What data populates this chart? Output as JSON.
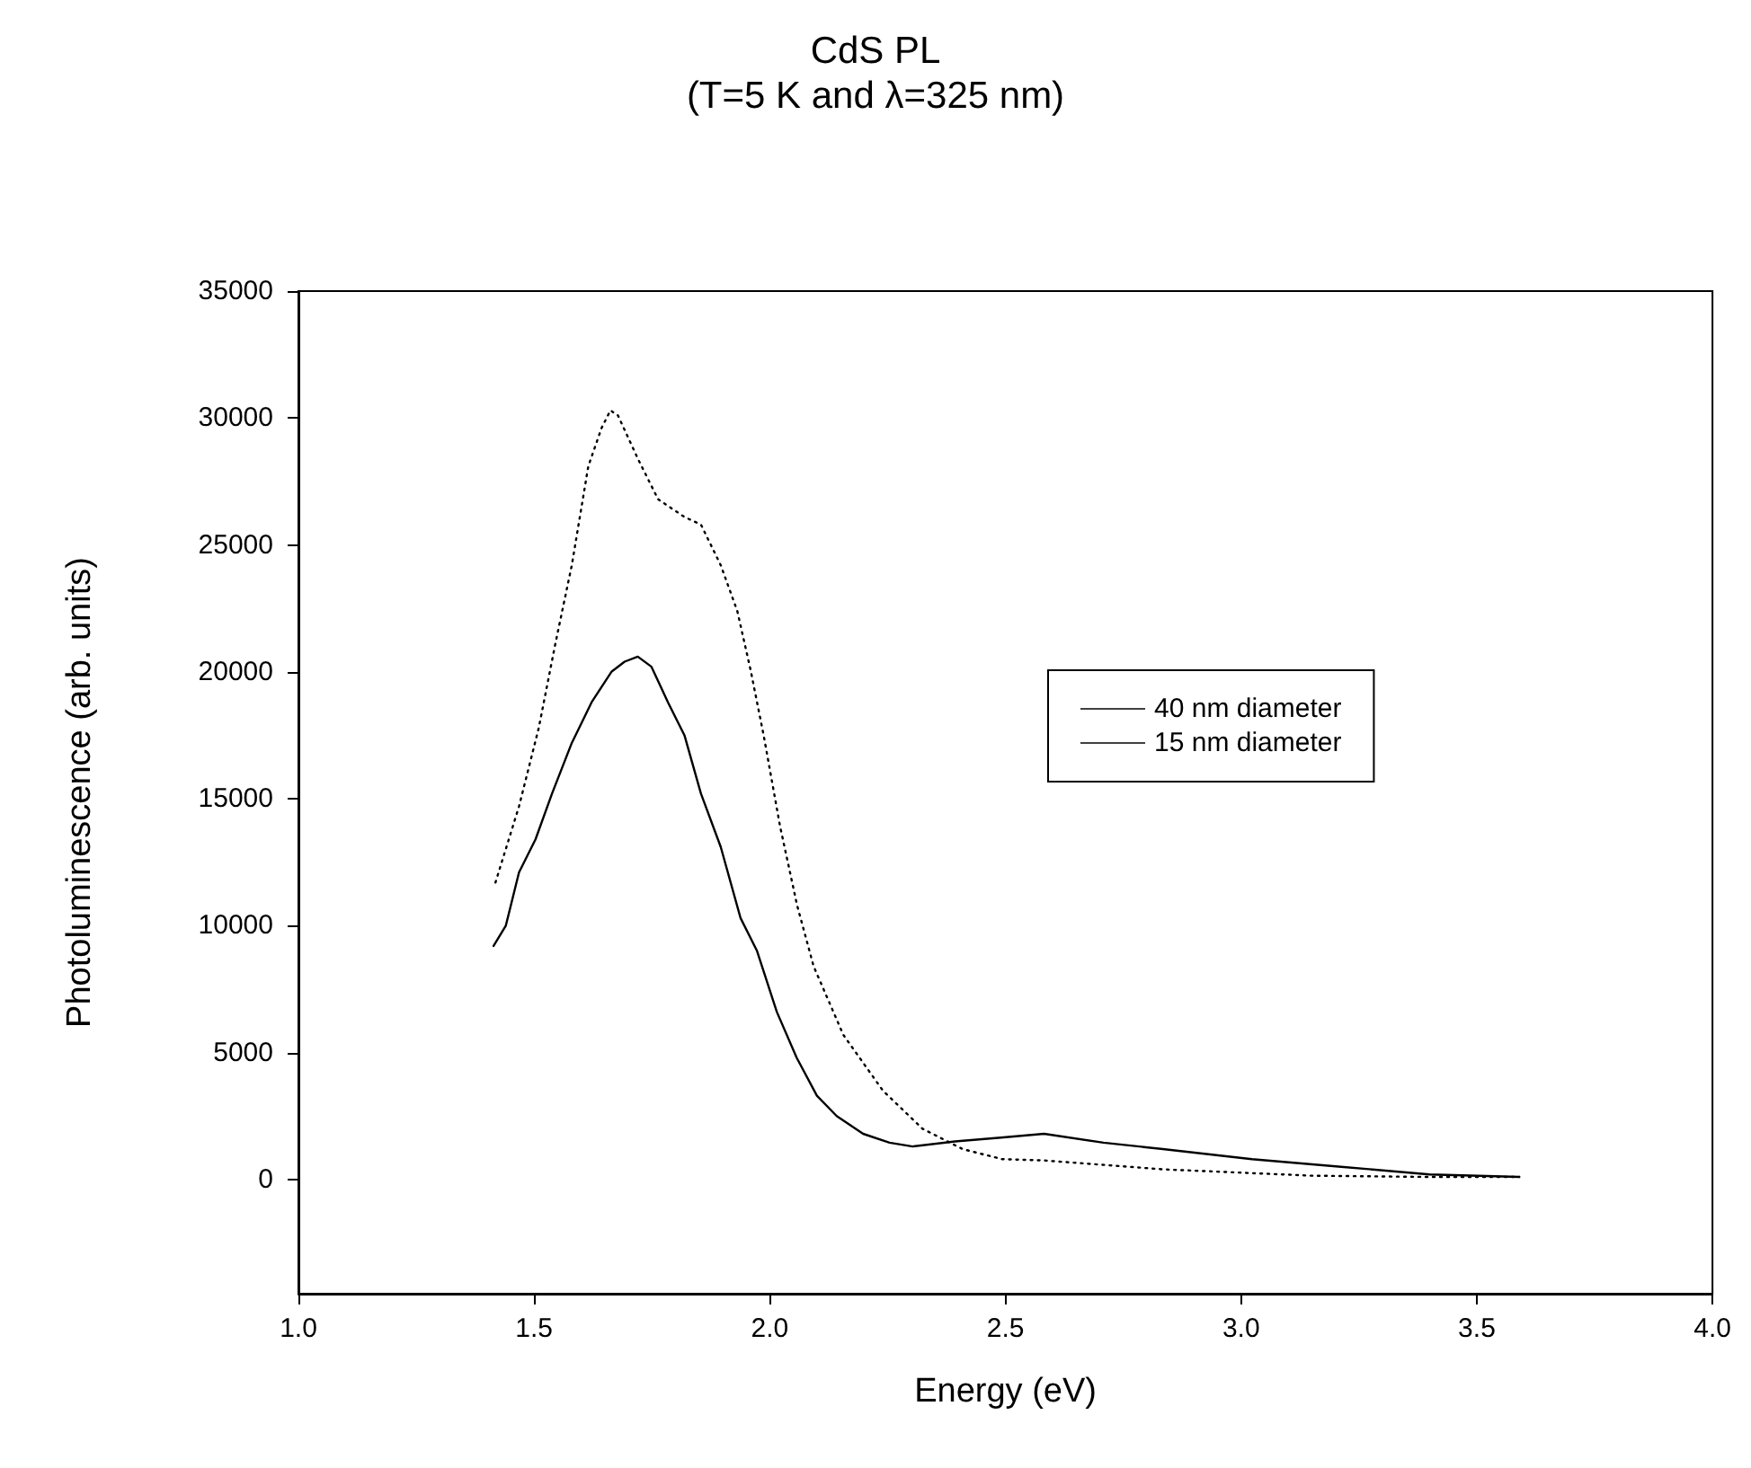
{
  "chart_data": {
    "type": "line",
    "title": "CdS PL",
    "subtitle": "(T=5 K and λ=325 nm)",
    "xlabel": "Energy (eV)",
    "ylabel": "Photoluminescence (arb. units)",
    "xlim": [
      1.0,
      4.0
    ],
    "xticks": [
      {
        "value": 1,
        "label": "1.0"
      },
      1.5,
      {
        "value": 2,
        "label": "2.0"
      },
      2.5,
      {
        "value": 3,
        "label": "3.0"
      },
      3.5,
      {
        "value": 4,
        "label": "4.0"
      }
    ],
    "ylim": [
      -4500,
      35000
    ],
    "yticks": [
      0,
      5000,
      10000,
      15000,
      20000,
      25000,
      30000,
      35000
    ],
    "grid": false,
    "legend": "right",
    "marker": "none",
    "series": [
      {
        "name": "40 nm diameter",
        "color": "#000000",
        "line_style": "solid",
        "x": [
          1.414,
          1.44,
          1.468,
          1.503,
          1.538,
          1.58,
          1.622,
          1.664,
          1.692,
          1.72,
          1.749,
          1.784,
          1.819,
          1.854,
          1.896,
          1.938,
          1.973,
          2.015,
          2.057,
          2.1,
          2.142,
          2.198,
          2.254,
          2.303,
          2.393,
          2.49,
          2.582,
          2.708,
          2.834,
          3.023,
          3.212,
          3.4,
          3.59
        ],
        "values": [
          9200,
          10000,
          12100,
          13400,
          15200,
          17200,
          18800,
          20000,
          20400,
          20600,
          20200,
          18800,
          17500,
          15200,
          13100,
          10300,
          9000,
          6600,
          4800,
          3300,
          2500,
          1800,
          1450,
          1300,
          1500,
          1650,
          1800,
          1450,
          1200,
          800,
          500,
          200,
          100
        ]
      },
      {
        "name": "15 nm diameter",
        "color": "#000000",
        "line_style": "dotted",
        "x": [
          1.418,
          1.468,
          1.51,
          1.545,
          1.58,
          1.615,
          1.643,
          1.662,
          1.678,
          1.72,
          1.763,
          1.819,
          1.854,
          1.896,
          1.931,
          1.959,
          1.987,
          2.022,
          2.058,
          2.093,
          2.156,
          2.24,
          2.324,
          2.409,
          2.493,
          2.582,
          2.834,
          3.149,
          3.4,
          3.59
        ],
        "values": [
          11700,
          14700,
          17800,
          21100,
          24200,
          28100,
          29600,
          30300,
          30100,
          28400,
          26800,
          26100,
          25800,
          24200,
          22400,
          20100,
          17500,
          13900,
          10800,
          8400,
          5700,
          3500,
          2000,
          1200,
          800,
          750,
          400,
          150,
          100,
          100
        ]
      }
    ]
  }
}
